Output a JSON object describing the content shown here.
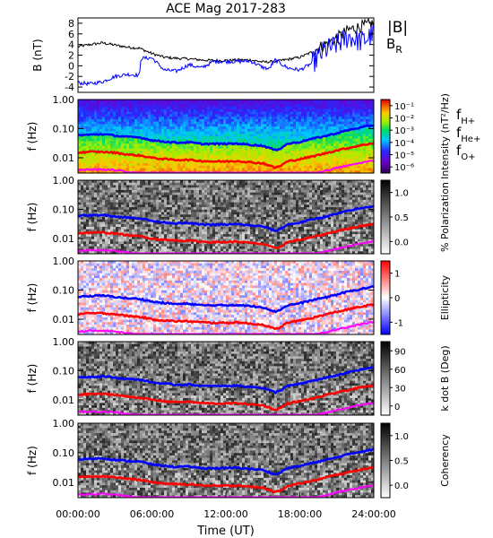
{
  "chart_data": {
    "title": "ACE Mag 2017-283",
    "xlabel": "Time (UT)",
    "x_ticks": [
      "00:00:00",
      "06:00:00",
      "12:00:00",
      "18:00:00",
      "24:00:00"
    ],
    "x_range_hours": [
      0,
      24
    ],
    "panels": [
      {
        "type": "line",
        "ylabel": "B (nT)",
        "ylim": [
          -5,
          9
        ],
        "yticks": [
          "-4",
          "-2",
          "0",
          "2",
          "4",
          "6",
          "8"
        ],
        "legend": [
          {
            "name": "|B|",
            "color": "#000000"
          },
          {
            "name": "B_R",
            "color": "#0000ff"
          }
        ],
        "series": [
          {
            "name": "|B|",
            "color": "#000000",
            "x": [
              0,
              1,
              2,
              3,
              4,
              5,
              6,
              7,
              8,
              9,
              10,
              11,
              12,
              13,
              14,
              15,
              16,
              17,
              18,
              19,
              20,
              21,
              22,
              23,
              24
            ],
            "values": [
              3.6,
              4.0,
              4.3,
              3.9,
              3.5,
              3.3,
              2.3,
              1.6,
              1.4,
              1.3,
              1.1,
              1.0,
              1.0,
              1.1,
              1.1,
              0.7,
              0.8,
              1.2,
              1.6,
              2.6,
              4.0,
              5.2,
              6.8,
              7.4,
              8.0
            ]
          },
          {
            "name": "B_R",
            "color": "#0000ff",
            "x": [
              0,
              1,
              2,
              3,
              4,
              5,
              5.1,
              6,
              7,
              8,
              9,
              10,
              11,
              12,
              13,
              14,
              15,
              15.5,
              16,
              17,
              18,
              19,
              20,
              21,
              22,
              23,
              24
            ],
            "values": [
              -3.2,
              -3.4,
              -3.0,
              -2.0,
              -1.6,
              -1.8,
              1.4,
              1.5,
              -0.8,
              -1.0,
              0.2,
              -0.4,
              0.8,
              0.8,
              0.8,
              0.9,
              -0.3,
              -0.6,
              1.1,
              -0.4,
              -0.8,
              0.5,
              2.8,
              4.0,
              5.5,
              4.5,
              6.0
            ]
          }
        ]
      },
      {
        "type": "heatmap",
        "ylabel": "f (Hz)",
        "yscale": "log",
        "ylim": [
          0.003,
          1.0
        ],
        "yticks": [
          "1.00",
          "0.10",
          "0.01"
        ],
        "colorbar_label": "Intensity (nT²/Hz)",
        "colorbar_ticks": [
          "10⁻¹",
          "10⁻²",
          "10⁻³",
          "10⁻⁴",
          "10⁻⁵",
          "10⁻⁶"
        ],
        "colormap": "rainbow",
        "cyclotron_lines": [
          "f_H+",
          "f_He+",
          "f_O+"
        ]
      },
      {
        "type": "heatmap",
        "ylabel": "f (Hz)",
        "yscale": "log",
        "ylim": [
          0.003,
          1.0
        ],
        "yticks": [
          "1.00",
          "0.10",
          "0.01"
        ],
        "colorbar_label": "% Polarization",
        "colorbar_ticks": [
          "1.0",
          "0.5",
          "0.0"
        ],
        "colormap": "gray"
      },
      {
        "type": "heatmap",
        "ylabel": "f (Hz)",
        "yscale": "log",
        "ylim": [
          0.003,
          1.0
        ],
        "yticks": [
          "1.00",
          "0.10",
          "0.01"
        ],
        "colorbar_label": "Ellipticity",
        "colorbar_ticks": [
          "1",
          "0",
          "-1"
        ],
        "colormap": "blue-white-red"
      },
      {
        "type": "heatmap",
        "ylabel": "f (Hz)",
        "yscale": "log",
        "ylim": [
          0.003,
          1.0
        ],
        "yticks": [
          "1.00",
          "0.10",
          "0.01"
        ],
        "colorbar_label": "k dot B (Deg)",
        "colorbar_ticks": [
          "90",
          "60",
          "30",
          "0"
        ],
        "colormap": "gray"
      },
      {
        "type": "heatmap",
        "ylabel": "f (Hz)",
        "yscale": "log",
        "ylim": [
          0.003,
          1.0
        ],
        "yticks": [
          "1.00",
          "0.10",
          "0.01"
        ],
        "colorbar_label": "Coherency",
        "colorbar_ticks": [
          "1.0",
          "0.5",
          "0.0"
        ],
        "colormap": "gray"
      }
    ],
    "cyclotron_frequencies": {
      "x": [
        0,
        1,
        2,
        3,
        4,
        5,
        6,
        7,
        8,
        9,
        10,
        11,
        12,
        13,
        14,
        15,
        16,
        16.5,
        17,
        18,
        19,
        20,
        21,
        22,
        23,
        24
      ],
      "f_H+": [
        0.06,
        0.062,
        0.065,
        0.058,
        0.052,
        0.05,
        0.04,
        0.036,
        0.033,
        0.034,
        0.03,
        0.03,
        0.03,
        0.031,
        0.028,
        0.026,
        0.018,
        0.022,
        0.03,
        0.035,
        0.045,
        0.055,
        0.07,
        0.09,
        0.11,
        0.13
      ],
      "f_He+": [
        0.015,
        0.016,
        0.016,
        0.015,
        0.013,
        0.012,
        0.01,
        0.009,
        0.0085,
        0.0085,
        0.0078,
        0.0075,
        0.0075,
        0.0078,
        0.007,
        0.0065,
        0.0045,
        0.0055,
        0.0075,
        0.009,
        0.011,
        0.014,
        0.018,
        0.022,
        0.027,
        0.032
      ],
      "f_O+": [
        0.0038,
        0.004,
        0.004,
        0.0038,
        0.0033,
        0.003,
        0.0026,
        0.0023,
        0.0021,
        0.0021,
        0.002,
        0.0019,
        0.0019,
        0.002,
        0.0018,
        0.0016,
        0.0012,
        0.0014,
        0.0019,
        0.0023,
        0.0028,
        0.0035,
        0.0045,
        0.0055,
        0.0068,
        0.008
      ]
    }
  },
  "colors": {
    "H_line": "#0000ff",
    "He_line": "#ff0000",
    "O_line": "#ff00ff",
    "B_total": "#000000",
    "B_R": "#0000ff"
  }
}
